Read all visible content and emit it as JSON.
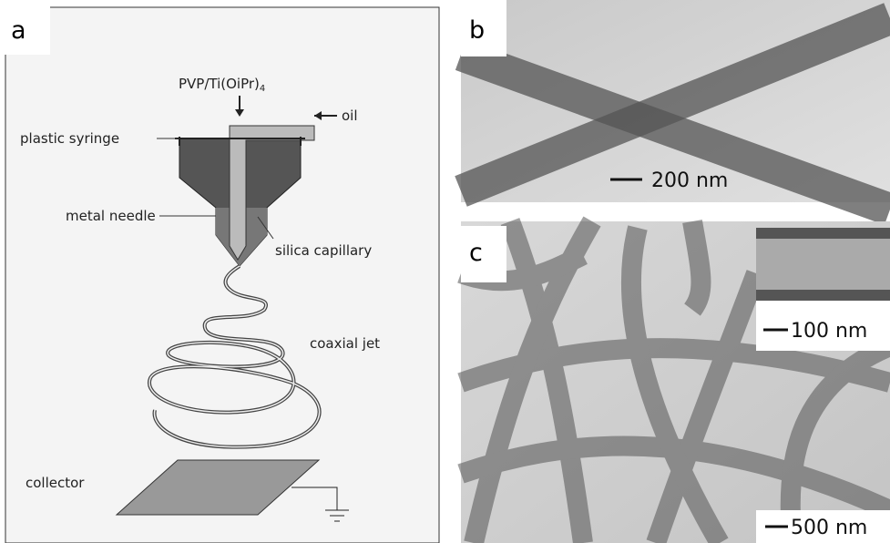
{
  "panel_a": {
    "label": "a",
    "feed": {
      "main": "PVP/Ti(OiPr)",
      "subscript": "4"
    },
    "labels": {
      "syringe": "plastic syringe",
      "oil": "oil",
      "needle": "metal needle",
      "capillary": "silica capillary",
      "jet": "coaxial jet",
      "collector": "collector"
    }
  },
  "panel_b": {
    "label": "b",
    "scale_bar": "200 nm"
  },
  "panel_c": {
    "label": "c",
    "inset_scale_bar": "100 nm",
    "scale_bar": "500 nm"
  }
}
